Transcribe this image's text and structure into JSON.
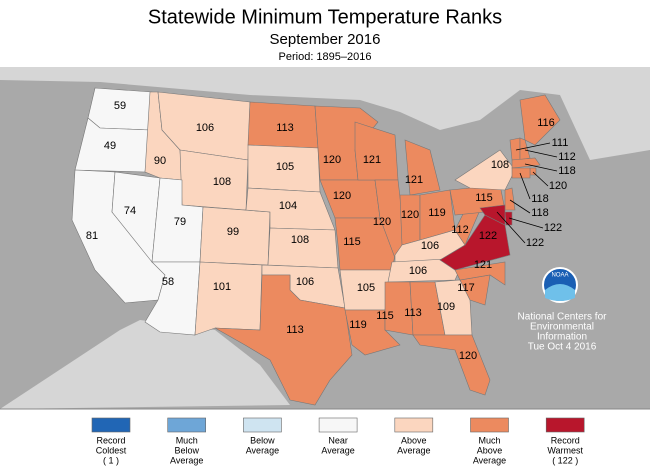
{
  "header": {
    "title": "Statewide Minimum Temperature Ranks",
    "subtitle": "September 2016",
    "period": "Period: 1895–2016"
  },
  "states": [
    {
      "rank": 59,
      "color": "#f7f7f7"
    },
    {
      "rank": 49,
      "color": "#f7f7f7"
    },
    {
      "rank": 81,
      "color": "#f7f7f7"
    },
    {
      "rank": 74,
      "color": "#f7f7f7"
    },
    {
      "rank": 90,
      "color": "#fbd6bf"
    },
    {
      "rank": 106,
      "color": "#fbd6bf"
    },
    {
      "rank": 108,
      "color": "#fbd6bf"
    },
    {
      "rank": 79,
      "color": "#f7f7f7"
    },
    {
      "rank": 58,
      "color": "#f7f7f7"
    },
    {
      "rank": 99,
      "color": "#fbd6bf"
    },
    {
      "rank": 101,
      "color": "#fbd6bf"
    },
    {
      "rank": 113,
      "color": "#ec8a5f"
    },
    {
      "rank": 105,
      "color": "#fbd6bf"
    },
    {
      "rank": 104,
      "color": "#fbd6bf"
    },
    {
      "rank": 108,
      "color": "#fbd6bf"
    },
    {
      "rank": 106,
      "color": "#fbd6bf"
    },
    {
      "rank": 113,
      "color": "#ec8a5f"
    },
    {
      "rank": 120,
      "color": "#ec8a5f"
    },
    {
      "rank": 120,
      "color": "#ec8a5f"
    },
    {
      "rank": 115,
      "color": "#ec8a5f"
    },
    {
      "rank": 105,
      "color": "#fbd6bf"
    },
    {
      "rank": 119,
      "color": "#ec8a5f"
    },
    {
      "rank": 121,
      "color": "#ec8a5f"
    },
    {
      "rank": 120,
      "color": "#ec8a5f"
    },
    {
      "rank": 121,
      "color": "#ec8a5f"
    },
    {
      "rank": 120,
      "color": "#ec8a5f"
    },
    {
      "rank": 119,
      "color": "#ec8a5f"
    },
    {
      "rank": 106,
      "color": "#fbd6bf"
    },
    {
      "rank": 106,
      "color": "#fbd6bf"
    },
    {
      "rank": 115,
      "color": "#ec8a5f"
    },
    {
      "rank": 113,
      "color": "#ec8a5f"
    },
    {
      "rank": 109,
      "color": "#fbd6bf"
    },
    {
      "rank": 120,
      "color": "#ec8a5f"
    },
    {
      "rank": 117,
      "color": "#ec8a5f"
    },
    {
      "rank": 121,
      "color": "#ec8a5f"
    },
    {
      "rank": 122,
      "color": "#b8162c"
    },
    {
      "rank": 112,
      "color": "#ec8a5f"
    },
    {
      "rank": 115,
      "color": "#ec8a5f"
    },
    {
      "rank": 108,
      "color": "#fbd6bf"
    },
    {
      "rank": 116,
      "color": "#ec8a5f"
    },
    {
      "rank": 111,
      "color": "#ec8a5f"
    },
    {
      "rank": 112,
      "color": "#ec8a5f"
    },
    {
      "rank": 118,
      "color": "#ec8a5f"
    },
    {
      "rank": 120,
      "color": "#ec8a5f"
    },
    {
      "rank": 118,
      "color": "#ec8a5f"
    },
    {
      "rank": 118,
      "color": "#ec8a5f"
    },
    {
      "rank": 122,
      "color": "#b8162c"
    },
    {
      "rank": 122,
      "color": "#b8162c"
    }
  ],
  "legend": [
    {
      "lines": [
        "Record",
        "Coldest",
        "( 1 )"
      ],
      "color": "#2166b5"
    },
    {
      "lines": [
        "Much",
        "Below",
        "Average"
      ],
      "color": "#6ea6d7"
    },
    {
      "lines": [
        "Below",
        "Average"
      ],
      "color": "#cfe4f1"
    },
    {
      "lines": [
        "Near",
        "Average"
      ],
      "color": "#f7f7f7"
    },
    {
      "lines": [
        "Above",
        "Average"
      ],
      "color": "#fbd6bf"
    },
    {
      "lines": [
        "Much",
        "Above",
        "Average"
      ],
      "color": "#ec8a5f"
    },
    {
      "lines": [
        "Record",
        "Warmest",
        "( 122 )"
      ],
      "color": "#b8162c"
    }
  ],
  "logo": "NOAA",
  "credit": [
    "National Centers for",
    "Environmental",
    "Information",
    "Tue Oct  4 2016"
  ]
}
